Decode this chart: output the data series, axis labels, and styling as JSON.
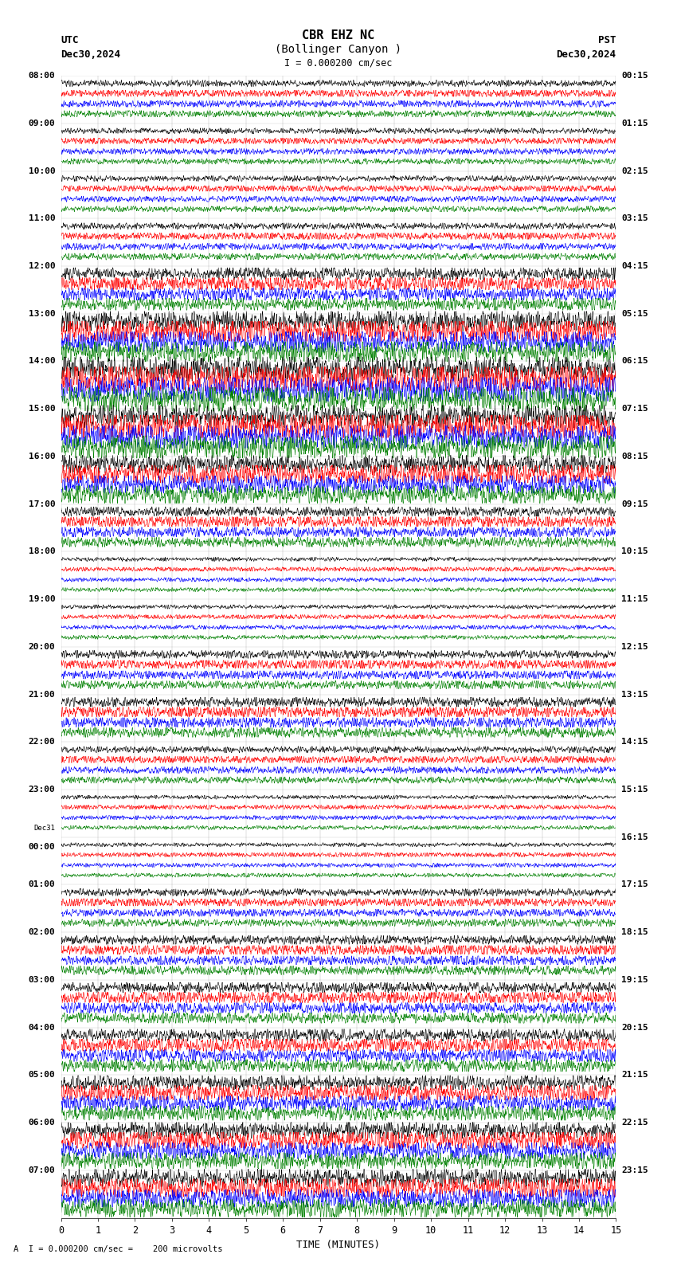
{
  "title_line1": "CBR EHZ NC",
  "title_line2": "(Bollinger Canyon )",
  "scale_text": "I = 0.000200 cm/sec",
  "footer_text": "A  I = 0.000200 cm/sec =    200 microvolts",
  "utc_label": "UTC",
  "utc_date": "Dec30,2024",
  "pst_label": "PST",
  "pst_date": "Dec30,2024",
  "xlabel": "TIME (MINUTES)",
  "left_times": [
    "08:00",
    "09:00",
    "10:00",
    "11:00",
    "12:00",
    "13:00",
    "14:00",
    "15:00",
    "16:00",
    "17:00",
    "18:00",
    "19:00",
    "20:00",
    "21:00",
    "22:00",
    "23:00",
    "Dec31\n00:00",
    "01:00",
    "02:00",
    "03:00",
    "04:00",
    "05:00",
    "06:00",
    "07:00"
  ],
  "right_times": [
    "00:15",
    "01:15",
    "02:15",
    "03:15",
    "04:15",
    "05:15",
    "06:15",
    "07:15",
    "08:15",
    "09:15",
    "10:15",
    "11:15",
    "12:15",
    "13:15",
    "14:15",
    "15:15",
    "16:15",
    "17:15",
    "18:15",
    "19:15",
    "20:15",
    "21:15",
    "22:15",
    "23:15"
  ],
  "n_rows": 24,
  "n_traces": 4,
  "colors": [
    "black",
    "red",
    "blue",
    "green"
  ],
  "minutes_per_row": 15,
  "x_ticks": [
    0,
    1,
    2,
    3,
    4,
    5,
    6,
    7,
    8,
    9,
    10,
    11,
    12,
    13,
    14,
    15
  ],
  "background_color": "white",
  "seed": 42,
  "row_amplitudes": [
    0.8,
    0.7,
    0.7,
    0.8,
    1.5,
    2.5,
    3.0,
    2.8,
    2.2,
    1.2,
    0.5,
    0.5,
    1.0,
    1.2,
    0.8,
    0.5,
    0.5,
    0.9,
    1.1,
    1.3,
    1.5,
    1.8,
    2.0,
    2.2
  ]
}
